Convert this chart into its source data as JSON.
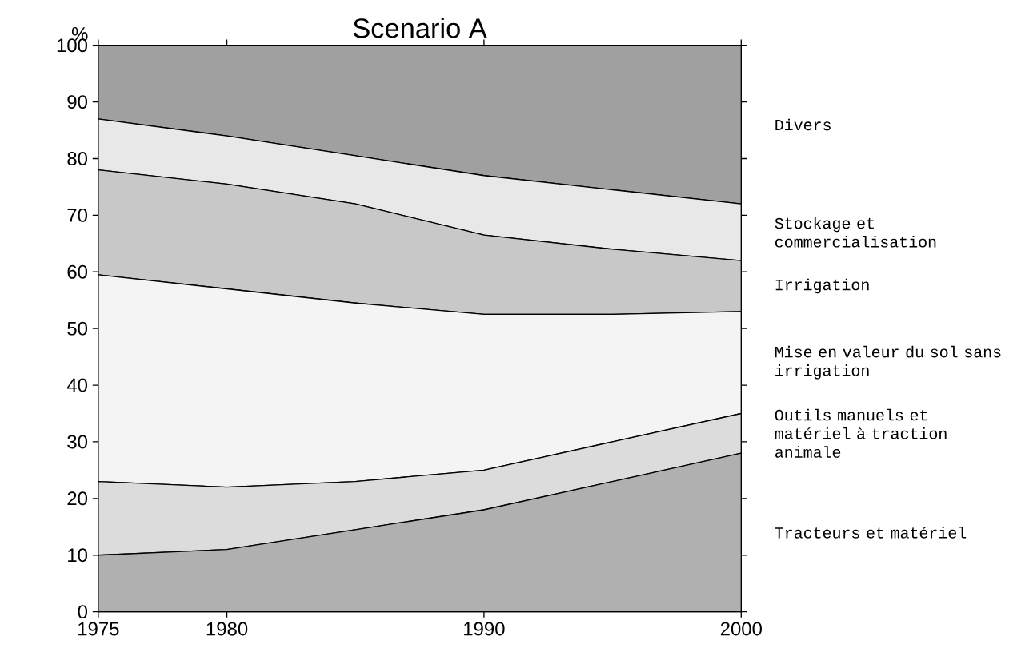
{
  "chart_data": {
    "type": "area",
    "title": "Scenario A",
    "ylabel": "%",
    "stacked": true,
    "x": [
      1975,
      1980,
      1985,
      1990,
      1995,
      2000
    ],
    "series": [
      {
        "name": "Tracteurs et matériel",
        "color": "#b0b0b0",
        "values": [
          10,
          11,
          14.5,
          18,
          23,
          28
        ]
      },
      {
        "name": "Outils manuels et matériel à traction animale",
        "color": "#dcdcdc",
        "values": [
          13,
          11,
          8.5,
          7,
          7,
          7
        ]
      },
      {
        "name": "Mise en valeur du sol sans irrigation",
        "color": "#f4f4f4",
        "values": [
          36.5,
          35,
          31.5,
          27.5,
          22.5,
          18
        ]
      },
      {
        "name": "Irrigation",
        "color": "#c8c8c8",
        "values": [
          18.5,
          18.5,
          17.5,
          14,
          11.5,
          9
        ]
      },
      {
        "name": "Stockage et commercialisation",
        "color": "#e8e8e8",
        "values": [
          9,
          8.5,
          8.5,
          10.5,
          10.5,
          10
        ]
      },
      {
        "name": "Divers",
        "color": "#a0a0a0",
        "values": [
          13,
          16,
          19.5,
          23,
          25.5,
          28
        ]
      }
    ],
    "xlim": [
      1975,
      2000
    ],
    "ylim": [
      0,
      100
    ],
    "xticks": [
      1975,
      1980,
      1990,
      2000
    ],
    "yticks": [
      0,
      10,
      20,
      30,
      40,
      50,
      60,
      70,
      80,
      90,
      100
    ]
  }
}
